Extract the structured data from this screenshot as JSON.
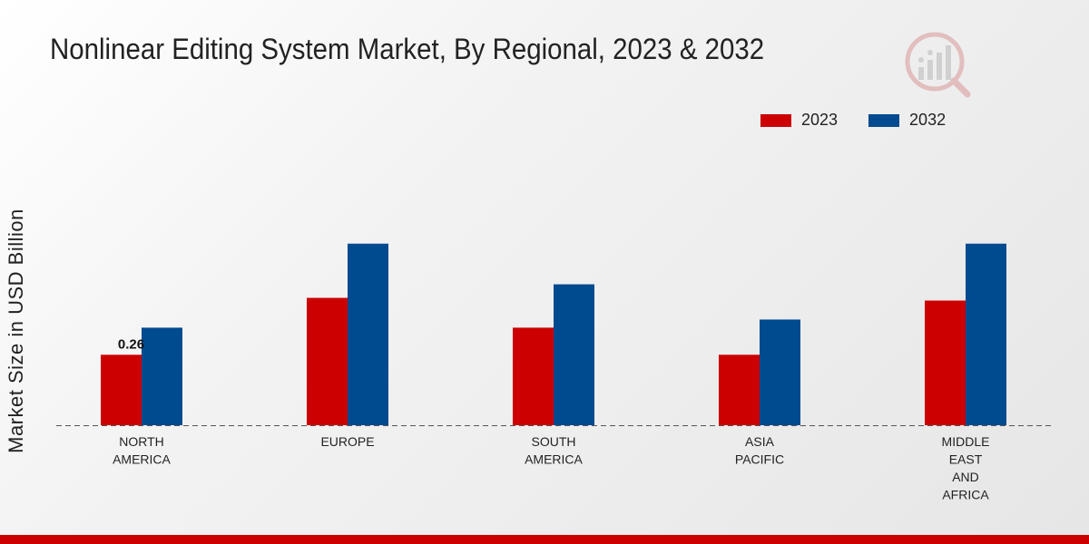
{
  "chart_data": {
    "type": "bar",
    "title": "Nonlinear Editing System Market, By Regional, 2023 & 2032",
    "xlabel": "",
    "ylabel": "Market Size in USD Billion",
    "categories": [
      "NORTH\nAMERICA",
      "EUROPE",
      "SOUTH\nAMERICA",
      "ASIA\nPACIFIC",
      "MIDDLE\nEAST\nAND\nAFRICA"
    ],
    "series": [
      {
        "name": "2023",
        "color": "#cc0000",
        "values": [
          0.26,
          0.47,
          0.36,
          0.26,
          0.46
        ]
      },
      {
        "name": "2032",
        "color": "#004a8f",
        "values": [
          0.36,
          0.67,
          0.52,
          0.39,
          0.67
        ]
      }
    ],
    "data_labels": [
      {
        "series": 0,
        "index": 0,
        "text": "0.26"
      }
    ],
    "ylim": [
      0,
      0.9
    ],
    "grid": false,
    "legend": "top-right"
  },
  "colors": {
    "accent_bar": "#cc0000",
    "axis": "#555555"
  },
  "logo": {
    "icon": "market-research-logo-icon"
  }
}
